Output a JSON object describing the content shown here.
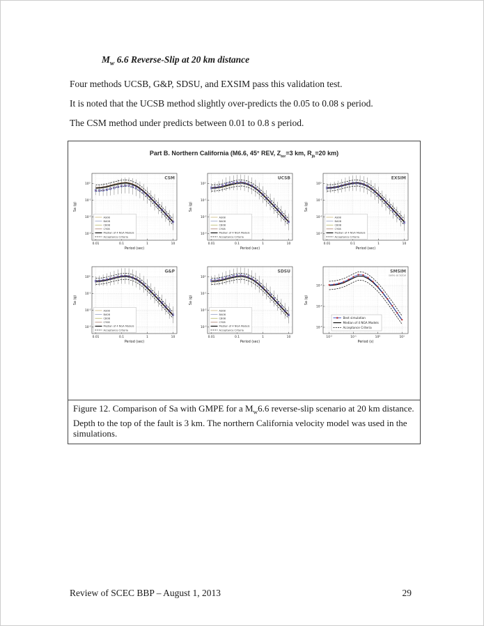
{
  "page": {
    "heading": {
      "m": "M",
      "sub": "w",
      "rest": " 6.6 Reverse-Slip at 20 km distance"
    },
    "paragraphs": [
      "Four methods UCSB, G&P, SDSU, and EXSIM pass this validation test.",
      "It is noted that the UCSB method slightly over-predicts the 0.05 to 0.08 s period.",
      "The CSM method under predicts between 0.01 to 0.8 s period."
    ],
    "caption": {
      "p1": "Figure 12. Comparison of Sa with GMPE for a M",
      "sub": "w",
      "p2": "6.6 reverse-slip scenario at 20 km distance. Depth to the top of the fault is 3 km. The northern California velocity model was used in the simulations."
    },
    "footer": {
      "left": "Review of SCEC BBP – August 1, 2013",
      "page": "29"
    }
  },
  "chart_data": {
    "type": "line",
    "figure_title": {
      "t1": "Part B. Northern California (M6.6, 45° REV, Z",
      "s1": "tor",
      "t2": "=3 km, R",
      "s2": "jb",
      "t3": "=20 km)"
    },
    "shared": {
      "xlabel": "Period (sec)",
      "ylabel": "Sa (g)",
      "xlog_range": [
        -2.15,
        1.15
      ],
      "ylog_range": [
        -3.4,
        0.6
      ],
      "xticks": [
        {
          "v": -2,
          "t": "0.01"
        },
        {
          "v": -1,
          "t": "0.1"
        },
        {
          "v": 0,
          "t": "1"
        },
        {
          "v": 1,
          "t": "10"
        }
      ],
      "yticks": [
        {
          "v": 0,
          "e": "0"
        },
        {
          "v": -1,
          "e": "-1"
        },
        {
          "v": -2,
          "e": "-2"
        },
        {
          "v": -3,
          "e": "-3"
        }
      ],
      "median_logx": [
        -2.0,
        -1.8,
        -1.6,
        -1.4,
        -1.2,
        -1.0,
        -0.8,
        -0.6,
        -0.4,
        -0.2,
        0.0,
        0.2,
        0.4,
        0.6,
        0.8,
        1.0
      ],
      "median_logy": [
        -0.28,
        -0.26,
        -0.21,
        -0.13,
        -0.05,
        0.01,
        0.03,
        -0.04,
        -0.18,
        -0.4,
        -0.68,
        -0.99,
        -1.31,
        -1.64,
        -1.97,
        -2.3
      ],
      "gmpe_models": [
        {
          "name": "AS08",
          "color": "#c2ae6a",
          "offset": -0.05
        },
        {
          "name": "BA08",
          "color": "#8894bc",
          "offset": -0.025
        },
        {
          "name": "CB08",
          "color": "#aaa84e",
          "offset": 0.02
        },
        {
          "name": "CY08",
          "color": "#9c6a58",
          "offset": 0.045
        }
      ],
      "median_name": "Median of 4 NGA Models",
      "acceptance_name": "Acceptance Criteria",
      "acceptance_offset": 0.18,
      "marker_logx": [
        -2.0,
        -1.857,
        -1.714,
        -1.571,
        -1.429,
        -1.286,
        -1.143,
        -1.0,
        -0.857,
        -0.714,
        -0.571,
        -0.429,
        -0.286,
        -0.143,
        0.0,
        0.143,
        0.286,
        0.429,
        0.571,
        0.714,
        0.857,
        1.0
      ],
      "err_half": [
        0.28,
        0.31,
        0.34,
        0.37,
        0.4,
        0.42,
        0.44,
        0.46,
        0.47,
        0.48,
        0.49,
        0.5,
        0.5,
        0.5,
        0.5,
        0.49,
        0.49,
        0.48,
        0.48,
        0.47,
        0.47,
        0.5
      ],
      "colors": {
        "median": "#000000",
        "marker": "#3a50c0",
        "marker_dot": "#c23030",
        "errorbar": "#6a6a6a",
        "grid_major": "#cfcfcf",
        "grid_minor": "#e6e6e6"
      }
    },
    "subplots": [
      {
        "name": "CSM",
        "kind": "gmpe",
        "sim_offsets": [
          -0.14,
          -0.16,
          -0.17,
          -0.18,
          -0.18,
          -0.18,
          -0.17,
          -0.16,
          -0.15,
          -0.13,
          -0.12,
          -0.1,
          -0.08,
          -0.05,
          -0.03,
          -0.01,
          0.0,
          0.0,
          0.0,
          0.0,
          0.0,
          0.0
        ]
      },
      {
        "name": "UCSB",
        "kind": "gmpe",
        "sim_offsets": [
          0.01,
          0.02,
          0.04,
          0.07,
          0.1,
          0.1,
          0.07,
          0.05,
          0.04,
          0.03,
          0.03,
          0.02,
          0.02,
          0.02,
          0.01,
          0.01,
          0.02,
          0.02,
          0.01,
          0.01,
          0.0,
          0.0
        ]
      },
      {
        "name": "EXSIM",
        "kind": "gmpe",
        "sim_offsets": [
          0.01,
          0.0,
          0.0,
          -0.01,
          0.0,
          0.01,
          0.01,
          0.0,
          -0.01,
          -0.01,
          0.0,
          0.01,
          0.0,
          -0.01,
          -0.02,
          -0.02,
          -0.01,
          -0.02,
          -0.03,
          -0.03,
          -0.04,
          -0.04
        ]
      },
      {
        "name": "G&P",
        "kind": "gmpe",
        "sim_offsets": [
          0.02,
          0.02,
          0.03,
          0.03,
          0.02,
          0.02,
          0.03,
          0.03,
          0.02,
          0.02,
          0.01,
          0.02,
          0.02,
          0.03,
          0.03,
          0.02,
          0.03,
          0.04,
          0.04,
          0.03,
          0.02,
          0.02
        ]
      },
      {
        "name": "SDSU",
        "kind": "gmpe",
        "sim_offsets": [
          0.05,
          0.06,
          0.07,
          0.08,
          0.08,
          0.07,
          0.07,
          0.06,
          0.06,
          0.05,
          0.05,
          0.04,
          0.04,
          0.03,
          0.03,
          0.04,
          0.05,
          0.05,
          0.04,
          0.03,
          0.02,
          0.01
        ]
      },
      {
        "name": "SMSIM",
        "subtitle": "same as SoCal",
        "kind": "best",
        "xlabel": "Period (s)",
        "xlog_range": [
          -2.25,
          1.25
        ],
        "ylog_range": [
          -3.3,
          -0.1
        ],
        "xticks": [
          {
            "v": -2,
            "e": "-2"
          },
          {
            "v": -1,
            "e": "-1"
          },
          {
            "v": 0,
            "e": "0"
          },
          {
            "v": 1,
            "e": "1"
          }
        ],
        "yticks": [
          {
            "v": -1,
            "e": "-1"
          },
          {
            "v": -2,
            "e": "-2"
          },
          {
            "v": -3,
            "e": "-3"
          }
        ],
        "median_logx": [
          -2.0,
          -1.8,
          -1.6,
          -1.4,
          -1.2,
          -1.0,
          -0.8,
          -0.6,
          -0.4,
          -0.2,
          0.0,
          0.2,
          0.4,
          0.6,
          0.8,
          1.0
        ],
        "median_logy": [
          -1.0,
          -0.98,
          -0.94,
          -0.87,
          -0.76,
          -0.64,
          -0.55,
          -0.56,
          -0.67,
          -0.85,
          -1.08,
          -1.35,
          -1.66,
          -1.98,
          -2.32,
          -2.65
        ],
        "best_offsets": [
          0.03,
          0.03,
          0.04,
          0.05,
          0.05,
          0.06,
          0.07,
          0.06,
          0.05,
          0.04,
          0.03,
          0.02,
          0.02,
          0.01,
          0.01,
          0.01
        ],
        "acceptance_offset": 0.2,
        "best_name": "Best simulation",
        "legend": [
          "Best simulation",
          "Median of 4 NGA Models",
          "Acceptance Criteria"
        ]
      }
    ]
  }
}
